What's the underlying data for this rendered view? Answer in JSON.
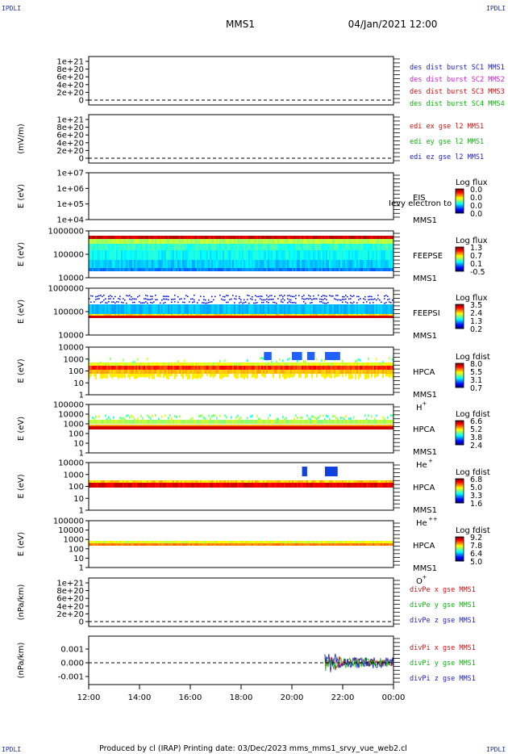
{
  "page": {
    "corner_label": "IPDLI",
    "mission": "MMS1",
    "date": "04/Jan/2021 12:00",
    "footer": "Produced by cl (IRAP)   Printing date: 03/Dec/2023   mms_mms1_srvy_vue_web2.cl"
  },
  "chart_data": [
    {
      "type": "line",
      "id": "p1",
      "ylabel": "",
      "yticks": [
        "1e+21",
        "8e+20",
        "6e+20",
        "4e+20",
        "2e+20",
        "0"
      ],
      "legend": [
        {
          "text": "des dist burst SC1 MMS1",
          "color": "#2020c0"
        },
        {
          "text": "des dist burst SC2 MMS2",
          "color": "#d020d0"
        },
        {
          "text": "des dist burst SC3 MMS3",
          "color": "#d01010"
        },
        {
          "text": "des dist burst SC4 MMS4",
          "color": "#10b010"
        }
      ]
    },
    {
      "type": "line",
      "id": "p2",
      "ylabel": "(mV/m)",
      "yticks": [
        "1e+21",
        "8e+20",
        "6e+20",
        "4e+20",
        "2e+20",
        "0"
      ],
      "legend": [
        {
          "text": "edi ex gse l2 MMS1",
          "color": "#d01010"
        },
        {
          "text": "edi ey gse l2 MMS1",
          "color": "#10b010"
        },
        {
          "text": "edi ez gse l2 MMS1",
          "color": "#2020c0"
        }
      ]
    },
    {
      "type": "heatmap",
      "id": "p3",
      "ylabel": "E (eV)",
      "yticks": [
        "1e+07",
        "1e+06",
        "1e+05",
        "1e+04"
      ],
      "labels": [
        "EIS",
        "MMS1"
      ],
      "overlay_text": "Ievy electron to",
      "cbar_title": "Log flux",
      "cbar_ticks": [
        "0.0",
        "0.0",
        "0.0",
        "0.0"
      ]
    },
    {
      "type": "heatmap",
      "id": "p4",
      "ylabel": "E (eV)",
      "yticks": [
        "1000000",
        "100000",
        "10000"
      ],
      "labels": [
        "FEEPSE",
        "MMS1"
      ],
      "cbar_title": "Log flux",
      "cbar_ticks": [
        "1.3",
        "0.7",
        "0.1",
        "-0.5"
      ]
    },
    {
      "type": "heatmap",
      "id": "p5",
      "ylabel": "E (eV)",
      "yticks": [
        "1000000",
        "100000",
        "10000"
      ],
      "labels": [
        "FEEPSI",
        "MMS1"
      ],
      "cbar_title": "Log flux",
      "cbar_ticks": [
        "3.5",
        "2.4",
        "1.3",
        "0.2"
      ]
    },
    {
      "type": "heatmap",
      "id": "p6",
      "ylabel": "E (eV)",
      "yticks": [
        "10000",
        "1000",
        "100",
        "10",
        "1"
      ],
      "labels": [
        "HPCA",
        "MMS1"
      ],
      "species": "H",
      "species_sup": "+",
      "cbar_title": "Log fdist",
      "cbar_ticks": [
        "8.0",
        "5.5",
        "3.1",
        "0.7"
      ]
    },
    {
      "type": "heatmap",
      "id": "p7",
      "ylabel": "E (eV)",
      "yticks": [
        "100000",
        "10000",
        "1000",
        "100",
        "10",
        "1"
      ],
      "labels": [
        "HPCA",
        "MMS1"
      ],
      "species": "He",
      "species_sup": "+",
      "cbar_title": "Log fdist",
      "cbar_ticks": [
        "6.6",
        "5.2",
        "3.8",
        "2.4"
      ]
    },
    {
      "type": "heatmap",
      "id": "p8",
      "ylabel": "E (eV)",
      "yticks": [
        "10000",
        "1000",
        "100",
        "10",
        "1"
      ],
      "labels": [
        "HPCA",
        "MMS1"
      ],
      "species": "He",
      "species_sup": "++",
      "cbar_title": "Log fdist",
      "cbar_ticks": [
        "6.8",
        "5.0",
        "3.3",
        "1.6"
      ]
    },
    {
      "type": "heatmap",
      "id": "p9",
      "ylabel": "E (eV)",
      "yticks": [
        "100000",
        "10000",
        "1000",
        "100",
        "10",
        "1"
      ],
      "labels": [
        "HPCA",
        "MMS1"
      ],
      "species": "O",
      "species_sup": "+",
      "cbar_title": "Log fdist",
      "cbar_ticks": [
        "9.2",
        "7.8",
        "6.4",
        "5.0"
      ]
    },
    {
      "type": "line",
      "id": "p10",
      "ylabel": "(nPa/km)",
      "yticks": [
        "1e+21",
        "8e+20",
        "6e+20",
        "4e+20",
        "2e+20",
        "0"
      ],
      "legend": [
        {
          "text": "divPe x gse MMS1",
          "color": "#d01010"
        },
        {
          "text": "divPe y gse MMS1",
          "color": "#10b010"
        },
        {
          "text": "divPe z gse MMS1",
          "color": "#2020c0"
        }
      ]
    },
    {
      "type": "line",
      "id": "p11",
      "ylabel": "(nPa/km)",
      "yticks": [
        "0.001",
        "0.000",
        "-0.001"
      ],
      "legend": [
        {
          "text": "divPi x gse MMS1",
          "color": "#d01010"
        },
        {
          "text": "divPi y gse MMS1",
          "color": "#10b010"
        },
        {
          "text": "divPi z gse MMS1",
          "color": "#2020c0"
        }
      ]
    }
  ],
  "xaxis": {
    "ticks": [
      "12:00",
      "14:00",
      "16:00",
      "18:00",
      "20:00",
      "22:00",
      "00:00"
    ]
  }
}
